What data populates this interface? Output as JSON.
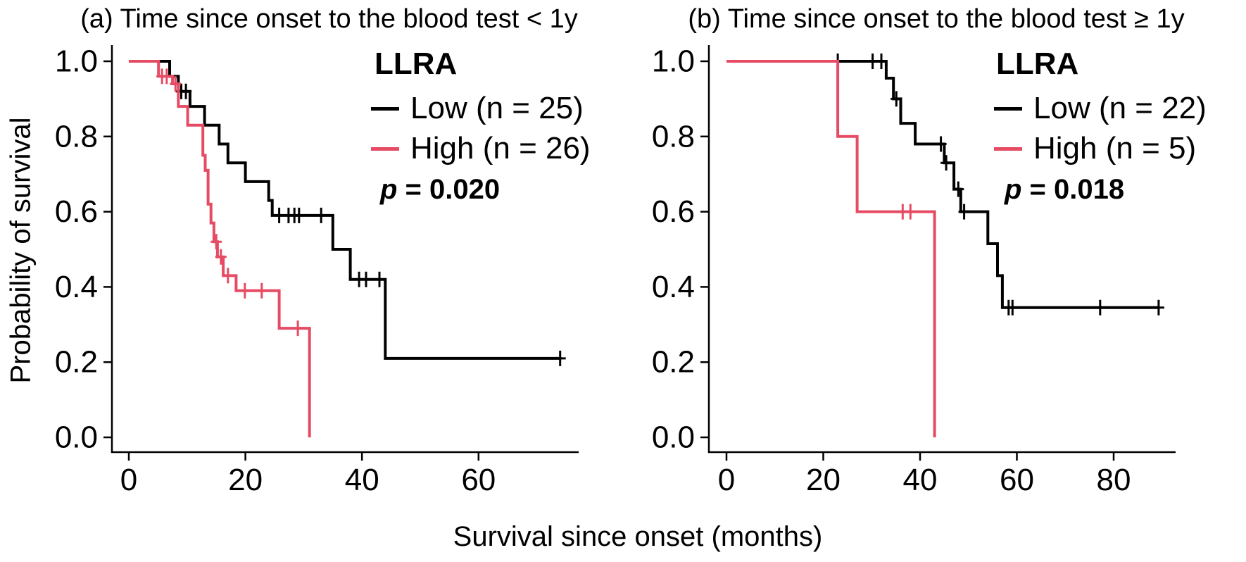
{
  "figure": {
    "xlabel": "Survival since onset (months)",
    "ylabel": "Probability of survival",
    "background": "#ffffff"
  },
  "colors": {
    "low": "#000000",
    "high": "#e64b64",
    "axis": "#000000"
  },
  "chart_data": [
    {
      "type": "line",
      "subtype": "kaplan-meier-step",
      "panel": "a",
      "title": "(a) Time since onset to the blood test < 1y",
      "legend_title": "LLRA",
      "legend_position": "top-right-inside",
      "p_symbol": "p",
      "p_rest": " = 0.020",
      "xlabel": "Survival since onset (months)",
      "ylabel": "Probability of survival",
      "xlim": [
        0,
        77
      ],
      "ylim": [
        0.0,
        1.0
      ],
      "x_ticks": [
        0,
        20,
        40,
        60
      ],
      "y_ticks": [
        "1.0",
        "0.8",
        "0.6",
        "0.4",
        "0.2",
        "0.0"
      ],
      "grid": false,
      "series": [
        {
          "name": "Low (n = 25)",
          "n": 25,
          "color": "#000000",
          "step_x": [
            0,
            7,
            8.5,
            10.5,
            13,
            15.5,
            17,
            20,
            24,
            24.6,
            35,
            38,
            44
          ],
          "step_y": [
            1.0,
            0.96,
            0.92,
            0.88,
            0.83,
            0.78,
            0.73,
            0.68,
            0.63,
            0.59,
            0.5,
            0.42,
            0.21
          ],
          "end_x": 74.2,
          "censors": [
            [
              9,
              0.92
            ],
            [
              9.8,
              0.92
            ],
            [
              25.8,
              0.59
            ],
            [
              27.4,
              0.59
            ],
            [
              28.4,
              0.59
            ],
            [
              29.2,
              0.59
            ],
            [
              33,
              0.59
            ],
            [
              39.5,
              0.42
            ],
            [
              40.7,
              0.42
            ],
            [
              43,
              0.42
            ],
            [
              74,
              0.21
            ]
          ]
        },
        {
          "name": "High (n = 26)",
          "n": 26,
          "color": "#e64b64",
          "step_x": [
            0,
            5.1,
            7.5,
            8.5,
            10.1,
            12.7,
            13.1,
            13.6,
            14.1,
            14.6,
            15.2,
            16.2,
            18.4,
            25.8,
            31
          ],
          "step_y": [
            1.0,
            0.96,
            0.94,
            0.88,
            0.83,
            0.75,
            0.71,
            0.62,
            0.57,
            0.52,
            0.48,
            0.43,
            0.39,
            0.29,
            0.0
          ],
          "end_x": 31,
          "censors": [
            [
              5.7,
              0.96
            ],
            [
              6.5,
              0.96
            ],
            [
              8,
              0.94
            ],
            [
              15,
              0.52
            ],
            [
              15.8,
              0.48
            ],
            [
              17,
              0.43
            ],
            [
              19.9,
              0.39
            ],
            [
              22.8,
              0.39
            ],
            [
              29,
              0.29
            ]
          ]
        }
      ]
    },
    {
      "type": "line",
      "subtype": "kaplan-meier-step",
      "panel": "b",
      "title": "(b) Time since onset to the blood test ≥ 1y",
      "legend_title": "LLRA",
      "legend_position": "top-right-inside",
      "p_symbol": "p",
      "p_rest": " = 0.018",
      "xlabel": "Survival since onset (months)",
      "ylabel": "Probability of survival",
      "xlim": [
        0,
        93
      ],
      "ylim": [
        0.0,
        1.0
      ],
      "x_ticks": [
        0,
        20,
        40,
        60,
        80
      ],
      "y_ticks": [
        "1.0",
        "0.8",
        "0.6",
        "0.4",
        "0.2",
        "0.0"
      ],
      "grid": false,
      "series": [
        {
          "name": "Low (n = 22)",
          "n": 22,
          "color": "#000000",
          "step_x": [
            0,
            33,
            34.5,
            36,
            39,
            45,
            47,
            48.4,
            54,
            56,
            57
          ],
          "step_y": [
            1.0,
            0.955,
            0.9,
            0.835,
            0.78,
            0.73,
            0.66,
            0.6,
            0.515,
            0.43,
            0.345
          ],
          "end_x": 89.3,
          "censors": [
            [
              23,
              1.0
            ],
            [
              30.2,
              1.0
            ],
            [
              32,
              1.0
            ],
            [
              35.1,
              0.9
            ],
            [
              44.3,
              0.78
            ],
            [
              45.4,
              0.73
            ],
            [
              47.9,
              0.66
            ],
            [
              49.1,
              0.6
            ],
            [
              58.3,
              0.345
            ],
            [
              59.1,
              0.345
            ],
            [
              77.2,
              0.345
            ],
            [
              89.3,
              0.345
            ]
          ]
        },
        {
          "name": "High (n = 5)",
          "n": 5,
          "color": "#e64b64",
          "step_x": [
            0,
            23,
            27,
            43
          ],
          "step_y": [
            1.0,
            0.8,
            0.6,
            0.0
          ],
          "end_x": 43,
          "censors": [
            [
              36.4,
              0.6
            ],
            [
              38,
              0.6
            ]
          ]
        }
      ]
    }
  ]
}
